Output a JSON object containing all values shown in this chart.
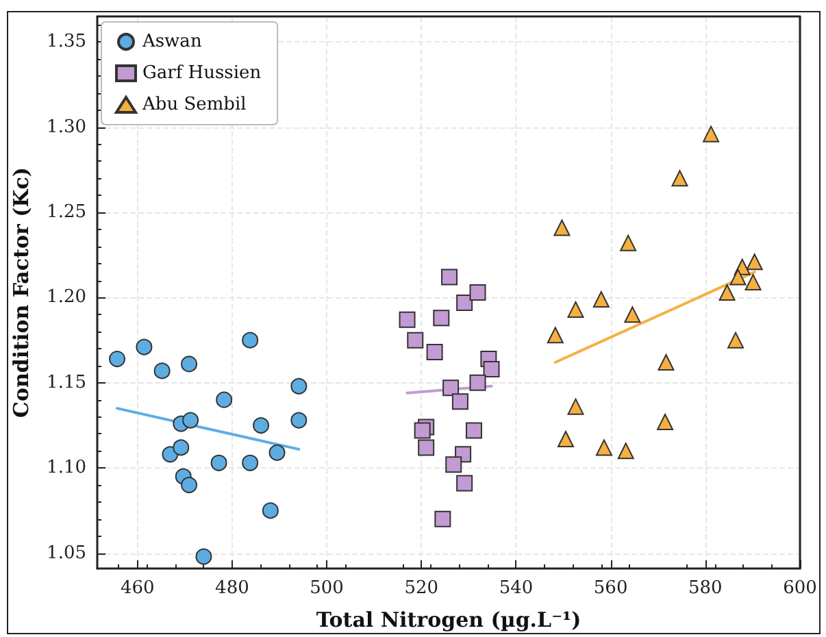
{
  "chart_data": {
    "type": "scatter",
    "xlabel": "Total Nitrogen (µg.L⁻¹)",
    "ylabel": "Condition Factor (Kc)",
    "xlim": [
      451.5,
      600
    ],
    "xticks": [
      460,
      480,
      500,
      520,
      540,
      560,
      580,
      600
    ],
    "ylim": [
      1.041,
      1.365
    ],
    "yticks": [
      1.05,
      {
        "value": 1.1,
        "label": "1.10"
      },
      1.15,
      {
        "value": 1.2,
        "label": "1.20"
      },
      1.25,
      {
        "value": 1.3,
        "label": "1.30"
      },
      1.35
    ],
    "grid": true,
    "legend": "top left",
    "series": [
      {
        "name": "Aswan",
        "marker": "circle",
        "color": "#5dade2",
        "x": [
          455.7,
          461.4,
          465.2,
          470.9,
          483.8,
          494.1,
          478.3,
          469.2,
          471.2,
          486.1,
          494.1,
          489.5,
          477.2,
          483.8,
          466.9,
          469.2,
          469.7,
          470.9,
          488.1,
          474.0
        ],
        "values": [
          1.164,
          1.171,
          1.157,
          1.161,
          1.175,
          1.148,
          1.14,
          1.126,
          1.128,
          1.125,
          1.128,
          1.109,
          1.103,
          1.103,
          1.108,
          1.112,
          1.095,
          1.09,
          1.075,
          1.048
        ]
      },
      {
        "name": "Garf Hussien",
        "marker": "square",
        "color": "#c39bd3",
        "x": [
          525.9,
          529.1,
          531.9,
          524.2,
          517.0,
          518.7,
          522.8,
          534.2,
          534.8,
          531.9,
          526.2,
          528.2,
          521.0,
          520.2,
          531.1,
          521.0,
          528.8,
          526.8,
          529.1,
          524.5
        ],
        "values": [
          1.212,
          1.197,
          1.203,
          1.188,
          1.187,
          1.175,
          1.168,
          1.164,
          1.158,
          1.15,
          1.147,
          1.139,
          1.124,
          1.122,
          1.122,
          1.112,
          1.108,
          1.102,
          1.091,
          1.07
        ]
      },
      {
        "name": "Abu Sembil",
        "marker": "triangle",
        "color": "#f5b041",
        "x": [
          581.2,
          574.6,
          549.7,
          563.7,
          590.4,
          587.8,
          586.9,
          590.1,
          584.6,
          558.0,
          552.6,
          564.6,
          548.3,
          586.4,
          571.7,
          552.6,
          571.5,
          550.5,
          558.6,
          563.2
        ],
        "values": [
          1.296,
          1.27,
          1.241,
          1.232,
          1.221,
          1.218,
          1.212,
          1.209,
          1.203,
          1.199,
          1.193,
          1.19,
          1.178,
          1.175,
          1.162,
          1.136,
          1.127,
          1.117,
          1.112,
          1.11
        ]
      },
      {
        "type": "line",
        "color": "#5dade2",
        "x": [
          455.7,
          494.1
        ],
        "values": [
          1.135,
          1.111
        ]
      },
      {
        "type": "line",
        "color": "#c39bd3",
        "x": [
          517.0,
          534.8
        ],
        "values": [
          1.144,
          1.148
        ]
      },
      {
        "type": "line",
        "color": "#f5b041",
        "x": [
          548.3,
          590.4
        ],
        "values": [
          1.162,
          1.215
        ]
      }
    ]
  }
}
